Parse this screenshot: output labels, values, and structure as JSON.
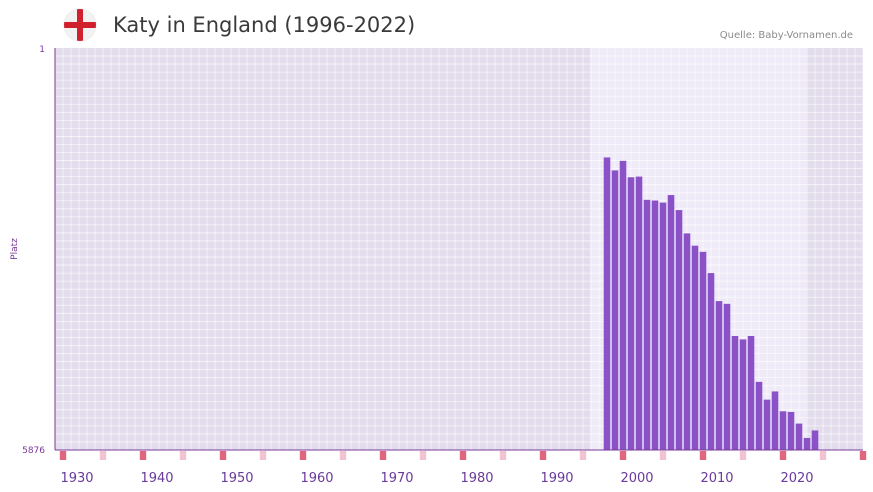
{
  "header": {
    "title": "Katy in England (1996-2022)",
    "source": "Quelle: Baby-Vornamen.de",
    "flag_icon": "england-flag-icon"
  },
  "colors": {
    "bar": "#8b52c8",
    "plot_bg": "#e2dcec",
    "highlight_bg": "#efeaf8",
    "axis": "#7a3a9a",
    "decade_marker": "#e06680",
    "half_decade_marker": "#f3c3cf"
  },
  "chart_data": {
    "type": "bar",
    "title": "Katy in England (1996-2022)",
    "xlabel": "",
    "ylabel": "Platz",
    "y_inverted": true,
    "ylim": [
      1,
      5876
    ],
    "ytick_labels": [
      "1",
      "5876"
    ],
    "xlim": [
      1927,
      2028
    ],
    "xtick_labels": [
      "1930",
      "1940",
      "1950",
      "1960",
      "1970",
      "1980",
      "1990",
      "2000",
      "2010",
      "2020"
    ],
    "xtick_values": [
      1930,
      1940,
      1950,
      1960,
      1970,
      1980,
      1990,
      2000,
      2010,
      2020
    ],
    "highlight_range": [
      1993.9,
      2020.9
    ],
    "years": [
      1996,
      1997,
      1998,
      1999,
      2000,
      2001,
      2002,
      2003,
      2004,
      2005,
      2006,
      2007,
      2008,
      2009,
      2010,
      2011,
      2012,
      2013,
      2014,
      2015,
      2016,
      2017,
      2018,
      2019,
      2020,
      2021,
      2022
    ],
    "values": [
      1600,
      1790,
      1650,
      1890,
      1880,
      2220,
      2230,
      2260,
      2150,
      2370,
      2710,
      2890,
      2980,
      3290,
      3700,
      3740,
      4210,
      4260,
      4210,
      4880,
      5140,
      5020,
      5310,
      5320,
      5490,
      5700,
      5590
    ]
  }
}
